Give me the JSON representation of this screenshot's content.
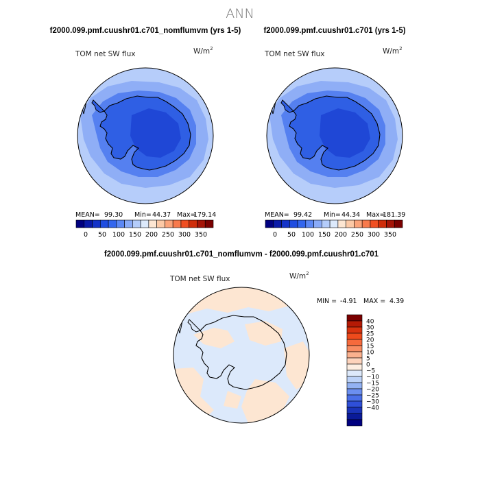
{
  "page": {
    "title": "ANN"
  },
  "panels": [
    {
      "case_label": "f2000.099.pmf.cuushr01.c701_nomflumvm (yrs 1-5)",
      "variable": "TOM net SW flux",
      "units": "W/m",
      "units_exp": "2",
      "stats": {
        "mean_label": "MEAN=",
        "mean": "99.30",
        "min_label": "Min=",
        "min": "44.37",
        "max_label": "Max=",
        "max": "179.14"
      }
    },
    {
      "case_label": "f2000.099.pmf.cuushr01.c701 (yrs 1-5)",
      "variable": "TOM net SW flux",
      "units": "W/m",
      "units_exp": "2",
      "stats": {
        "mean_label": "MEAN=",
        "mean": "99.42",
        "min_label": "Min=",
        "min": "44.34",
        "max_label": "Max=",
        "max": "181.39"
      }
    }
  ],
  "abs_colorbar": {
    "colors": [
      "#000080",
      "#0a1aa8",
      "#1433c8",
      "#1f4de0",
      "#3366ee",
      "#5c88f5",
      "#8aabf8",
      "#b4ccfa",
      "#dce9fb",
      "#fde6d2",
      "#fcc9a6",
      "#fba47a",
      "#f87a4c",
      "#f04f22",
      "#cf2d0a",
      "#a51407",
      "#7a0000"
    ],
    "tick_labels": [
      "0",
      "50",
      "100",
      "150",
      "200",
      "250",
      "300",
      "350"
    ]
  },
  "diff_panel": {
    "case_label": "f2000.099.pmf.cuushr01.c701_nomflumvm - f2000.099.pmf.cuushr01.c701",
    "variable": "TOM net SW flux",
    "units": "W/m",
    "units_exp": "2",
    "stats": {
      "min_label": "MIN =",
      "min": "-4.91",
      "max_label": "MAX =",
      "max": "4.39"
    }
  },
  "diff_colorbar": {
    "colors": [
      "#7a0000",
      "#b51a05",
      "#d8330f",
      "#ee4b1c",
      "#f56a3c",
      "#f88c62",
      "#fbb18e",
      "#fdd3bc",
      "#fdeee2",
      "#dde9fb",
      "#bcd2f8",
      "#93b2f3",
      "#6b8ff0",
      "#4a6fe8",
      "#2f4fd8",
      "#1a33b8",
      "#0a1a98",
      "#000080"
    ],
    "tick_labels": [
      "40",
      "30",
      "25",
      "20",
      "15",
      "10",
      "5",
      "0",
      "−5",
      "−10",
      "−15",
      "−20",
      "−25",
      "−30",
      "−40"
    ]
  },
  "map_colors": {
    "outer": "#b6cdfa",
    "ring": "#8faef6",
    "inner": "#5580f0",
    "core": "#2f5fe4",
    "deep": "#1f47d6",
    "diff_base": "#dce9fb",
    "diff_warm": "#fde6d2",
    "coast": "#000000"
  }
}
